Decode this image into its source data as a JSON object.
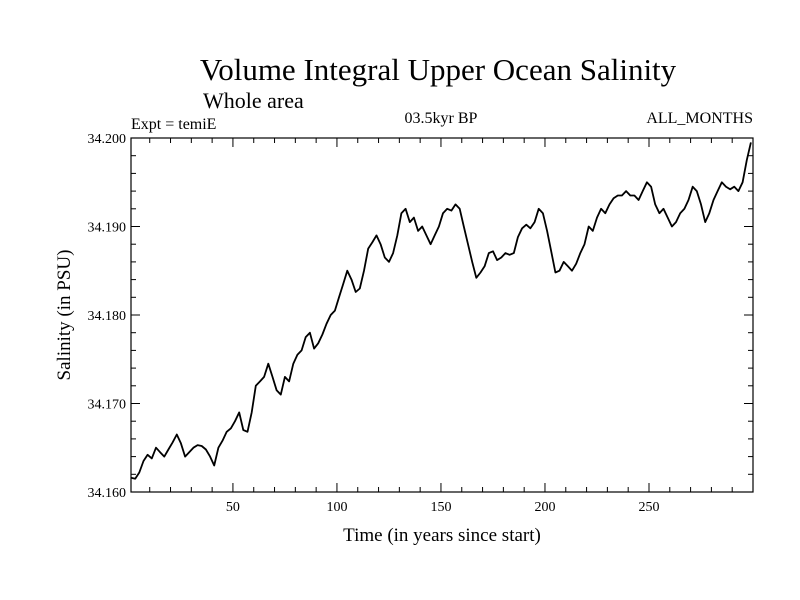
{
  "chart_data": {
    "type": "line",
    "title": "Volume Integral Upper Ocean Salinity",
    "subtitle": "Whole area",
    "experiment_label": "Expt = temiE",
    "period_label": "03.5kyr BP",
    "months_label": "ALL_MONTHS",
    "xlabel": "Time (in years since start)",
    "ylabel": "Salinity (in PSU)",
    "xlim": [
      1,
      300
    ],
    "ylim": [
      34.16,
      34.2
    ],
    "x_ticks": [
      50,
      100,
      150,
      200,
      250
    ],
    "x_tick_labels": [
      "50",
      "100",
      "150",
      "200",
      "250"
    ],
    "y_ticks": [
      34.16,
      34.17,
      34.18,
      34.19,
      34.2
    ],
    "y_tick_labels": [
      "34.160",
      "34.170",
      "34.180",
      "34.190",
      "34.200"
    ],
    "grid": false,
    "series": [
      {
        "name": "Salinity",
        "x": [
          1,
          3,
          5,
          7,
          9,
          11,
          13,
          15,
          17,
          19,
          21,
          23,
          25,
          27,
          29,
          31,
          33,
          35,
          37,
          39,
          41,
          43,
          45,
          47,
          49,
          51,
          53,
          55,
          57,
          59,
          61,
          63,
          65,
          67,
          69,
          71,
          73,
          75,
          77,
          79,
          81,
          83,
          85,
          87,
          89,
          91,
          93,
          95,
          97,
          99,
          101,
          103,
          105,
          107,
          109,
          111,
          113,
          115,
          117,
          119,
          121,
          123,
          125,
          127,
          129,
          131,
          133,
          135,
          137,
          139,
          141,
          143,
          145,
          147,
          149,
          151,
          153,
          155,
          157,
          159,
          161,
          163,
          165,
          167,
          169,
          171,
          173,
          175,
          177,
          179,
          181,
          183,
          185,
          187,
          189,
          191,
          193,
          195,
          197,
          199,
          201,
          203,
          205,
          207,
          209,
          211,
          213,
          215,
          217,
          219,
          221,
          223,
          225,
          227,
          229,
          231,
          233,
          235,
          237,
          239,
          241,
          243,
          245,
          247,
          249,
          251,
          253,
          255,
          257,
          259,
          261,
          263,
          265,
          267,
          269,
          271,
          273,
          275,
          277,
          279,
          281,
          283,
          285,
          287,
          289,
          291,
          293,
          295,
          297,
          299
        ],
        "values": [
          34.1616,
          34.1615,
          34.1622,
          34.1635,
          34.1642,
          34.1638,
          34.165,
          34.1645,
          34.164,
          34.1648,
          34.1656,
          34.1665,
          34.1655,
          34.164,
          34.1645,
          34.165,
          34.1653,
          34.1652,
          34.1648,
          34.164,
          34.163,
          34.165,
          34.1658,
          34.1668,
          34.1672,
          34.168,
          34.169,
          34.167,
          34.1668,
          34.169,
          34.172,
          34.1725,
          34.173,
          34.1745,
          34.173,
          34.1715,
          34.171,
          34.173,
          34.1725,
          34.1745,
          34.1755,
          34.176,
          34.1775,
          34.178,
          34.1762,
          34.1768,
          34.1778,
          34.179,
          34.18,
          34.1805,
          34.182,
          34.1835,
          34.185,
          34.184,
          34.1826,
          34.183,
          34.185,
          34.1875,
          34.1882,
          34.189,
          34.188,
          34.1865,
          34.186,
          34.187,
          34.189,
          34.1915,
          34.192,
          34.1905,
          34.191,
          34.1895,
          34.19,
          34.189,
          34.188,
          34.189,
          34.19,
          34.1915,
          34.192,
          34.1918,
          34.1925,
          34.192,
          34.19,
          34.188,
          34.186,
          34.1842,
          34.1848,
          34.1855,
          34.187,
          34.1872,
          34.1862,
          34.1865,
          34.187,
          34.1868,
          34.187,
          34.1888,
          34.1898,
          34.1902,
          34.1898,
          34.1905,
          34.192,
          34.1915,
          34.1895,
          34.1872,
          34.1848,
          34.185,
          34.186,
          34.1855,
          34.185,
          34.1858,
          34.187,
          34.188,
          34.19,
          34.1895,
          34.191,
          34.192,
          34.1915,
          34.1925,
          34.1932,
          34.1935,
          34.1935,
          34.194,
          34.1935,
          34.1935,
          34.193,
          34.194,
          34.195,
          34.1945,
          34.1925,
          34.1915,
          34.192,
          34.191,
          34.19,
          34.1905,
          34.1915,
          34.192,
          34.193,
          34.1945,
          34.194,
          34.1925,
          34.1905,
          34.1915,
          34.193,
          34.194,
          34.195,
          34.1945,
          34.1942,
          34.1945,
          34.194,
          34.195,
          34.1975,
          34.1995
        ]
      }
    ]
  }
}
